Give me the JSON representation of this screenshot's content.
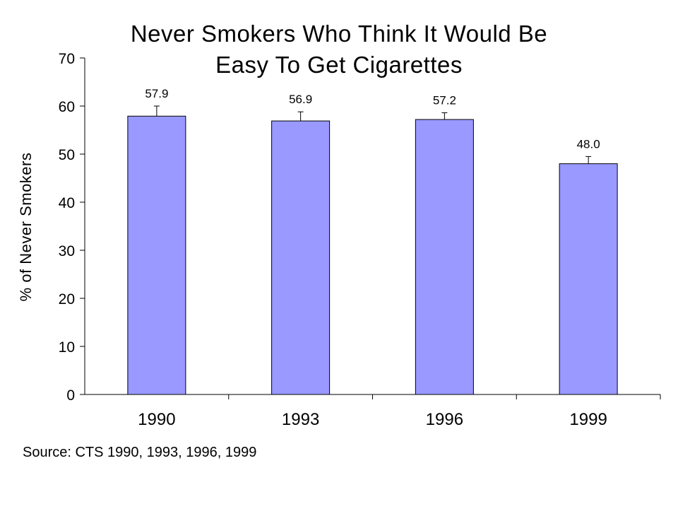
{
  "chart_data": {
    "type": "bar",
    "title": [
      "Never Smokers Who Think It Would Be",
      "Easy To Get Cigarettes"
    ],
    "ylabel": "% of Never Smokers",
    "xlabel": "",
    "categories": [
      "1990",
      "1993",
      "1996",
      "1999"
    ],
    "values": [
      57.9,
      56.9,
      57.2,
      48.0
    ],
    "data_labels": [
      "57.9",
      "56.9",
      "57.2",
      "48.0"
    ],
    "error_upper": [
      60.0,
      58.8,
      58.6,
      49.5
    ],
    "ylim": [
      0,
      70
    ],
    "yticks": [
      0,
      10,
      20,
      30,
      40,
      50,
      60,
      70
    ],
    "grid": false,
    "bar_color": "#9999ff",
    "bar_border_color": "#000000"
  },
  "source_text": "Source: CTS 1990, 1993, 1996, 1999"
}
